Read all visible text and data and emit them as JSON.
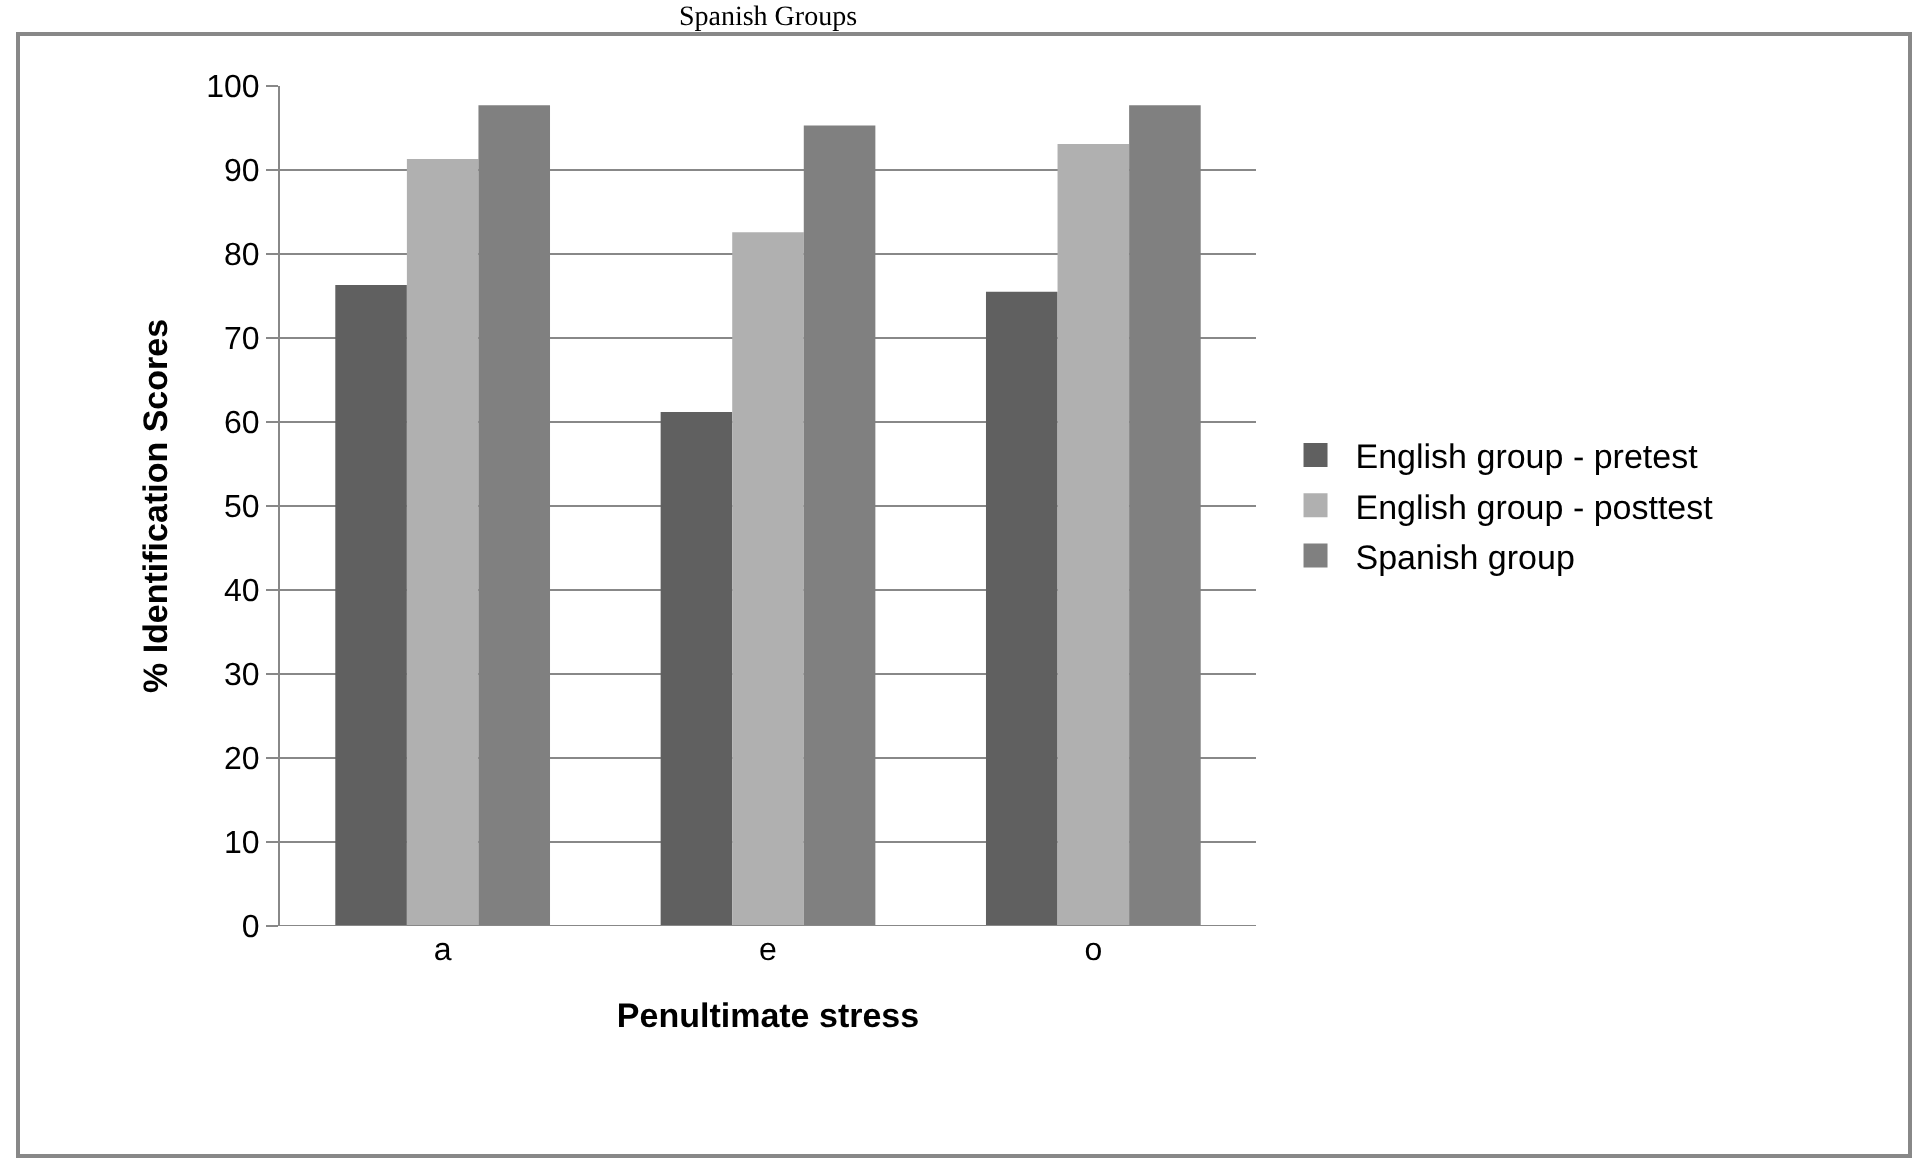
{
  "chart_data": {
    "type": "bar",
    "title": "Spanish Groups",
    "xlabel": "Penultimate stress",
    "ylabel": "% Identification Scores",
    "categories": [
      "a",
      "e",
      "o"
    ],
    "series": [
      {
        "name": "English group - pretest",
        "color": "#606060",
        "values": [
          76.3,
          61.2,
          75.5
        ]
      },
      {
        "name": "English group - posttest",
        "color": "#b0b0b0",
        "values": [
          91.3,
          82.6,
          93.1
        ]
      },
      {
        "name": "Spanish group",
        "color": "#808080",
        "values": [
          97.7,
          95.3,
          97.7
        ]
      }
    ],
    "ylim": [
      0,
      100
    ],
    "yticks": [
      0,
      10,
      20,
      30,
      40,
      50,
      60,
      70,
      80,
      90,
      100
    ],
    "grid": "y",
    "legend": "right"
  }
}
